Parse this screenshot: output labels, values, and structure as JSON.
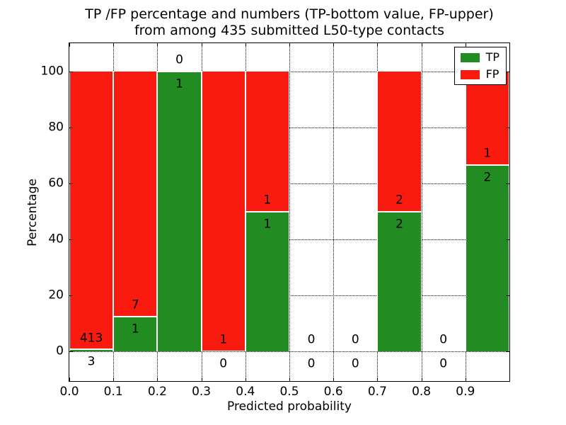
{
  "title": {
    "line1": "TP /FP percentage and numbers (TP-bottom value, FP-upper)",
    "line2": "from among 435 submitted L50-type contacts"
  },
  "axes": {
    "xlabel": "Predicted probability",
    "ylabel": "Percentage",
    "x_tick_labels": [
      "0.0",
      "0.1",
      "0.2",
      "0.3",
      "0.4",
      "0.5",
      "0.6",
      "0.7",
      "0.8",
      "0.9"
    ],
    "x_tick_values": [
      0.0,
      0.1,
      0.2,
      0.3,
      0.4,
      0.5,
      0.6,
      0.7,
      0.8,
      0.9
    ],
    "y_tick_labels": [
      "0",
      "20",
      "40",
      "60",
      "80",
      "100"
    ],
    "y_tick_values": [
      0,
      20,
      40,
      60,
      80,
      100
    ]
  },
  "legend": {
    "entries": [
      {
        "label": "TP",
        "color": "#228b22"
      },
      {
        "label": "FP",
        "color": "#fa1b10"
      }
    ]
  },
  "colors": {
    "tp": "#228b22",
    "fp": "#fa1b10",
    "grid": "#000000",
    "text": "#000000"
  },
  "chart_data": {
    "type": "bar",
    "stacked": true,
    "title": "TP /FP percentage and numbers (TP-bottom value, FP-upper) from among 435 submitted L50-type contacts",
    "xlabel": "Predicted probability",
    "ylabel": "Percentage",
    "xlim": [
      0.0,
      1.0
    ],
    "ylim": [
      0,
      100
    ],
    "grid": true,
    "legend_position": "upper right",
    "total_contacts": 435,
    "bin_width": 0.1,
    "bins": [
      {
        "range": [
          0.0,
          0.1
        ],
        "tp": 3,
        "fp": 413,
        "tp_pct": 0.72,
        "fp_pct": 99.28
      },
      {
        "range": [
          0.1,
          0.2
        ],
        "tp": 1,
        "fp": 7,
        "tp_pct": 12.5,
        "fp_pct": 87.5
      },
      {
        "range": [
          0.2,
          0.3
        ],
        "tp": 1,
        "fp": 0,
        "tp_pct": 100,
        "fp_pct": 0
      },
      {
        "range": [
          0.3,
          0.4
        ],
        "tp": 0,
        "fp": 1,
        "tp_pct": 0,
        "fp_pct": 100
      },
      {
        "range": [
          0.4,
          0.5
        ],
        "tp": 1,
        "fp": 1,
        "tp_pct": 50,
        "fp_pct": 50
      },
      {
        "range": [
          0.5,
          0.6
        ],
        "tp": 0,
        "fp": 0,
        "tp_pct": 0,
        "fp_pct": 0
      },
      {
        "range": [
          0.6,
          0.7
        ],
        "tp": 0,
        "fp": 0,
        "tp_pct": 0,
        "fp_pct": 0
      },
      {
        "range": [
          0.7,
          0.8
        ],
        "tp": 2,
        "fp": 2,
        "tp_pct": 50,
        "fp_pct": 50
      },
      {
        "range": [
          0.8,
          0.9
        ],
        "tp": 0,
        "fp": 0,
        "tp_pct": 0,
        "fp_pct": 0
      },
      {
        "range": [
          0.9,
          1.0
        ],
        "tp": 2,
        "fp": 1,
        "tp_pct": 66.67,
        "fp_pct": 33.33
      }
    ],
    "series": [
      {
        "name": "TP",
        "values": [
          0.72,
          12.5,
          100,
          0,
          50,
          0,
          0,
          50,
          0,
          66.67
        ]
      },
      {
        "name": "FP",
        "values": [
          99.28,
          87.5,
          0,
          100,
          50,
          0,
          0,
          50,
          0,
          33.33
        ]
      }
    ]
  }
}
